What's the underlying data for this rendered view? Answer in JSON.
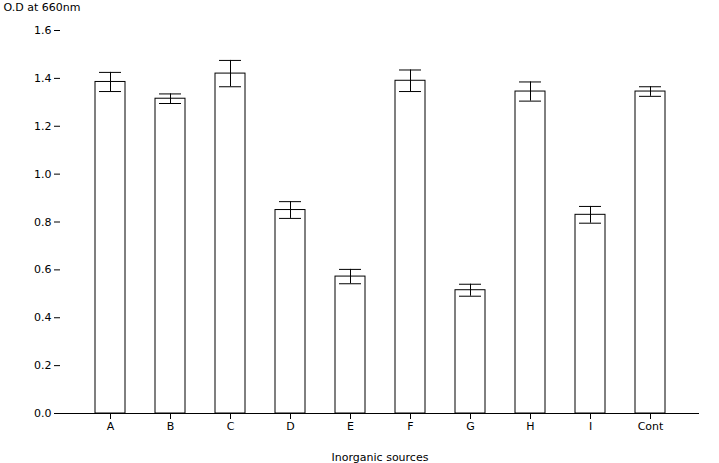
{
  "chart_data": {
    "type": "bar",
    "categories": [
      "A",
      "B",
      "C",
      "D",
      "E",
      "F",
      "G",
      "H",
      "I",
      "Cont"
    ],
    "values": [
      1.385,
      1.315,
      1.42,
      0.85,
      0.572,
      1.39,
      0.515,
      1.345,
      0.83,
      1.345
    ],
    "errors": [
      0.04,
      0.02,
      0.055,
      0.035,
      0.03,
      0.045,
      0.025,
      0.04,
      0.035,
      0.02
    ],
    "color": "#ffffff",
    "xlabel": "Inorganic sources",
    "ylabel": "O.D at 660nm",
    "ylim": [
      0.0,
      1.6
    ],
    "yticks": [
      {
        "value": 0.0,
        "label": "0.0"
      },
      0.2,
      0.4,
      0.6,
      0.8,
      {
        "value": 1.0,
        "label": "1.0"
      },
      1.2,
      1.4,
      1.6
    ]
  }
}
